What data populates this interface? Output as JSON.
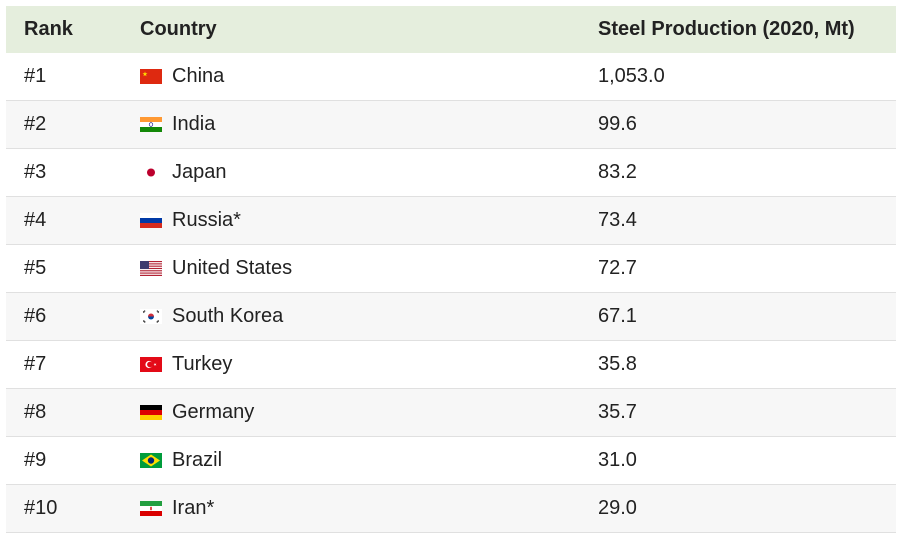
{
  "headers": {
    "rank": "Rank",
    "country": "Country",
    "value": "Steel Production (2020, Mt)"
  },
  "rows": [
    {
      "rank": "#1",
      "country": "China",
      "value": "1,053.0",
      "flag": "china-flag-icon"
    },
    {
      "rank": "#2",
      "country": "India",
      "value": "99.6",
      "flag": "india-flag-icon"
    },
    {
      "rank": "#3",
      "country": "Japan",
      "value": "83.2",
      "flag": "japan-flag-icon"
    },
    {
      "rank": "#4",
      "country": "Russia*",
      "value": "73.4",
      "flag": "russia-flag-icon"
    },
    {
      "rank": "#5",
      "country": "United States",
      "value": "72.7",
      "flag": "usa-flag-icon"
    },
    {
      "rank": "#6",
      "country": "South Korea",
      "value": "67.1",
      "flag": "south-korea-flag-icon"
    },
    {
      "rank": "#7",
      "country": "Turkey",
      "value": "35.8",
      "flag": "turkey-flag-icon"
    },
    {
      "rank": "#8",
      "country": "Germany",
      "value": "35.7",
      "flag": "germany-flag-icon"
    },
    {
      "rank": "#9",
      "country": "Brazil",
      "value": "31.0",
      "flag": "brazil-flag-icon"
    },
    {
      "rank": "#10",
      "country": "Iran*",
      "value": "29.0",
      "flag": "iran-flag-icon"
    }
  ],
  "colors": {
    "header_bg": "#e5eedd",
    "row_alt_bg": "#f7f7f7",
    "text": "#222222"
  }
}
